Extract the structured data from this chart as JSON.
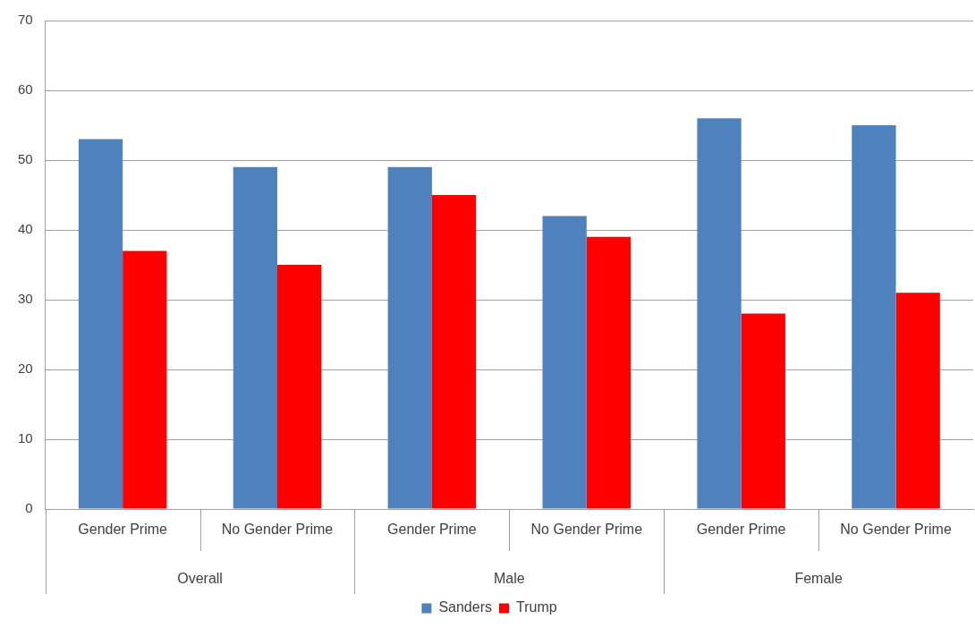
{
  "chart_data": {
    "type": "bar",
    "categories": [
      "Gender Prime",
      "No Gender Prime",
      "Gender Prime",
      "No Gender Prime",
      "Gender Prime",
      "No Gender Prime"
    ],
    "series": [
      {
        "name": "Sanders",
        "color": "#4f81bd",
        "values": [
          53,
          49,
          49,
          42,
          56,
          55
        ]
      },
      {
        "name": "Trump",
        "color": "#ff0000",
        "values": [
          37,
          35,
          45,
          39,
          28,
          31
        ]
      }
    ],
    "annotations": [
      "Overall",
      "Male",
      "Female"
    ],
    "ylim": [
      0,
      70
    ],
    "yticks": [
      0,
      10,
      20,
      30,
      40,
      50,
      60,
      70
    ],
    "grid": "y",
    "legend": "bottom"
  }
}
